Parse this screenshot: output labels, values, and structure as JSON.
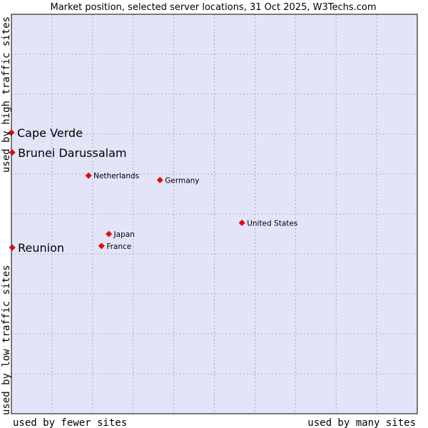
{
  "chart_data": {
    "type": "scatter",
    "title": "Market position, selected server locations, 31 Oct 2025, W3Techs.com",
    "xlabel_left": "used by fewer sites",
    "xlabel_right": "used by many sites",
    "ylabel_bottom": "used by low traffic sites",
    "ylabel_top": "used by high traffic sites",
    "xlim": [
      0,
      100
    ],
    "ylim": [
      0,
      100
    ],
    "grid": true,
    "colors": {
      "plot_background": "#e4e4f8",
      "grid": "#9a9aae",
      "border": "#000000",
      "marker": "#ff0000",
      "marker_edge": "#990000"
    },
    "points": [
      {
        "name": "Cape Verde",
        "x": 0.0,
        "y": 70.4,
        "highlight": true
      },
      {
        "name": "Brunei Darussalam",
        "x": 0.2,
        "y": 65.4,
        "highlight": true
      },
      {
        "name": "Reunion",
        "x": 0.2,
        "y": 41.6,
        "highlight": true
      },
      {
        "name": "Netherlands",
        "x": 19.0,
        "y": 59.6,
        "highlight": false
      },
      {
        "name": "Germany",
        "x": 36.6,
        "y": 58.5,
        "highlight": false
      },
      {
        "name": "United States",
        "x": 56.8,
        "y": 47.8,
        "highlight": false
      },
      {
        "name": "Japan",
        "x": 24.0,
        "y": 45.0,
        "highlight": false
      },
      {
        "name": "France",
        "x": 22.2,
        "y": 42.0,
        "highlight": false
      }
    ]
  }
}
